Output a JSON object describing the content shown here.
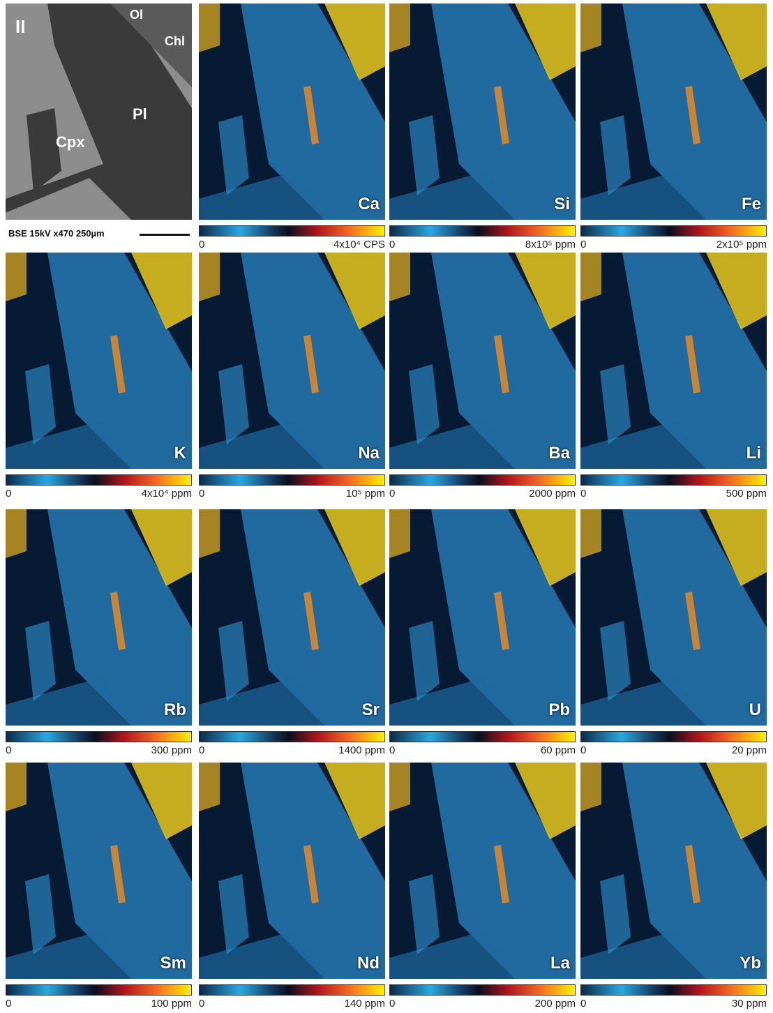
{
  "bse": {
    "label": "II",
    "phases": [
      "Ol",
      "Chl",
      "Pl",
      "Cpx"
    ],
    "caption": "BSE 15kV x470 250µm"
  },
  "maps": [
    {
      "element": "Ca",
      "min": "0",
      "max": "4x10⁴ CPS"
    },
    {
      "element": "Si",
      "min": "0",
      "max": "8x10⁵ ppm"
    },
    {
      "element": "Fe",
      "min": "0",
      "max": "2x10⁵ ppm"
    },
    {
      "element": "K",
      "min": "0",
      "max": "4x10⁴ ppm"
    },
    {
      "element": "Na",
      "min": "0",
      "max": "10⁵ ppm"
    },
    {
      "element": "Ba",
      "min": "0",
      "max": "2000 ppm"
    },
    {
      "element": "Li",
      "min": "0",
      "max": "500 ppm"
    },
    {
      "element": "Rb",
      "min": "0",
      "max": "300 ppm"
    },
    {
      "element": "Sr",
      "min": "0",
      "max": "1400 ppm"
    },
    {
      "element": "Pb",
      "min": "0",
      "max": "60 ppm"
    },
    {
      "element": "U",
      "min": "0",
      "max": "20 ppm"
    },
    {
      "element": "Sm",
      "min": "0",
      "max": "100 ppm"
    },
    {
      "element": "Nd",
      "min": "0",
      "max": "140 ppm"
    },
    {
      "element": "La",
      "min": "0",
      "max": "200 ppm"
    },
    {
      "element": "Yb",
      "min": "0",
      "max": "30 ppm"
    }
  ]
}
